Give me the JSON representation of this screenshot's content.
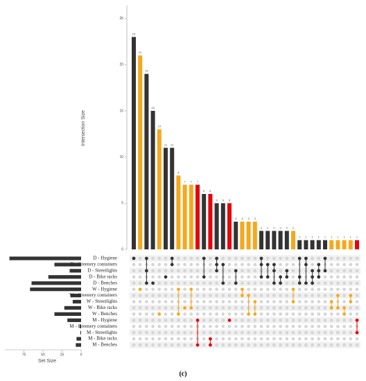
{
  "chart_data": {
    "type": "upset",
    "y_label": "Intersection Size",
    "x_label": "Set Size",
    "caption": "(c)",
    "ylim": [
      0,
      26.4
    ],
    "yticks": [
      0,
      5,
      10,
      15,
      20,
      25
    ],
    "xlim": [
      0,
      100
    ],
    "xticks": [
      75,
      50,
      25,
      0
    ],
    "sets": [
      "D - Hygiene",
      "D - Greenery containers",
      "D - Streetlights",
      "D - Bike racks",
      "D - Benches",
      "W - Hygiene",
      "W - Greenery containers",
      "W - Streetlights",
      "W - Bike racks",
      "W - Benches",
      "M - Hygiene",
      "M - Greenery containers",
      "M - Streetlights",
      "M - Bike racks",
      "M - Benches"
    ],
    "set_sizes": [
      94,
      35,
      15,
      43,
      65,
      67,
      14,
      11,
      22,
      35,
      18,
      2,
      1,
      6,
      7
    ],
    "set_color": "#333333",
    "intersections": [
      {
        "value": 23,
        "sets": [
          0
        ],
        "color": "#333333"
      },
      {
        "value": 21,
        "sets": [
          5
        ],
        "color": "#f5a81c"
      },
      {
        "value": 19,
        "sets": [
          0,
          2,
          4
        ],
        "color": "#333333"
      },
      {
        "value": 15,
        "sets": [
          4
        ],
        "color": "#333333"
      },
      {
        "value": 13,
        "sets": [
          9
        ],
        "color": "#f5a81c"
      },
      {
        "value": 11,
        "sets": [
          3
        ],
        "color": "#333333"
      },
      {
        "value": 11,
        "sets": [
          0,
          1
        ],
        "color": "#333333"
      },
      {
        "value": 8,
        "sets": [
          5,
          9
        ],
        "color": "#f5a81c"
      },
      {
        "value": 7,
        "sets": [
          8
        ],
        "color": "#f5a81c"
      },
      {
        "value": 7,
        "sets": [
          5,
          8
        ],
        "color": "#f5a81c"
      },
      {
        "value": 7,
        "sets": [
          10,
          14
        ],
        "color": "#e8000b"
      },
      {
        "value": 6,
        "sets": [
          0,
          3
        ],
        "color": "#333333"
      },
      {
        "value": 6,
        "sets": [
          13,
          14
        ],
        "color": "#e8000b"
      },
      {
        "value": 5,
        "sets": [
          0,
          1,
          2
        ],
        "color": "#333333"
      },
      {
        "value": 5,
        "sets": [
          1,
          4
        ],
        "color": "#333333"
      },
      {
        "value": 5,
        "sets": [
          10
        ],
        "color": "#e8000b"
      },
      {
        "value": 3,
        "sets": [
          2,
          4
        ],
        "color": "#333333"
      },
      {
        "value": 3,
        "sets": [
          5,
          6
        ],
        "color": "#f5a81c"
      },
      {
        "value": 3,
        "sets": [
          6,
          9
        ],
        "color": "#f5a81c"
      },
      {
        "value": 3,
        "sets": [
          7,
          9
        ],
        "color": "#f5a81c"
      },
      {
        "value": 2,
        "sets": [
          0,
          1,
          3
        ],
        "color": "#333333"
      },
      {
        "value": 2,
        "sets": [
          1,
          3
        ],
        "color": "#333333"
      },
      {
        "value": 2,
        "sets": [
          1,
          2,
          4
        ],
        "color": "#333333"
      },
      {
        "value": 2,
        "sets": [
          3,
          4
        ],
        "color": "#333333"
      },
      {
        "value": 2,
        "sets": [
          2,
          3
        ],
        "color": "#333333"
      },
      {
        "value": 2,
        "sets": [
          5,
          7
        ],
        "color": "#f5a81c"
      },
      {
        "value": 1,
        "sets": [
          0,
          3,
          4
        ],
        "color": "#333333"
      },
      {
        "value": 1,
        "sets": [
          0,
          1,
          4
        ],
        "color": "#333333"
      },
      {
        "value": 1,
        "sets": [
          2,
          3,
          4
        ],
        "color": "#333333"
      },
      {
        "value": 1,
        "sets": [
          1,
          2,
          3
        ],
        "color": "#333333"
      },
      {
        "value": 1,
        "sets": [
          0,
          2
        ],
        "color": "#333333"
      },
      {
        "value": 1,
        "sets": [
          7,
          8
        ],
        "color": "#f5a81c"
      },
      {
        "value": 1,
        "sets": [
          6,
          8
        ],
        "color": "#f5a81c"
      },
      {
        "value": 1,
        "sets": [
          8,
          9
        ],
        "color": "#f5a81c"
      },
      {
        "value": 1,
        "sets": [
          6,
          7
        ],
        "color": "#f5a81c"
      },
      {
        "value": 1,
        "sets": [
          10,
          12
        ],
        "color": "#e8000b"
      }
    ]
  }
}
